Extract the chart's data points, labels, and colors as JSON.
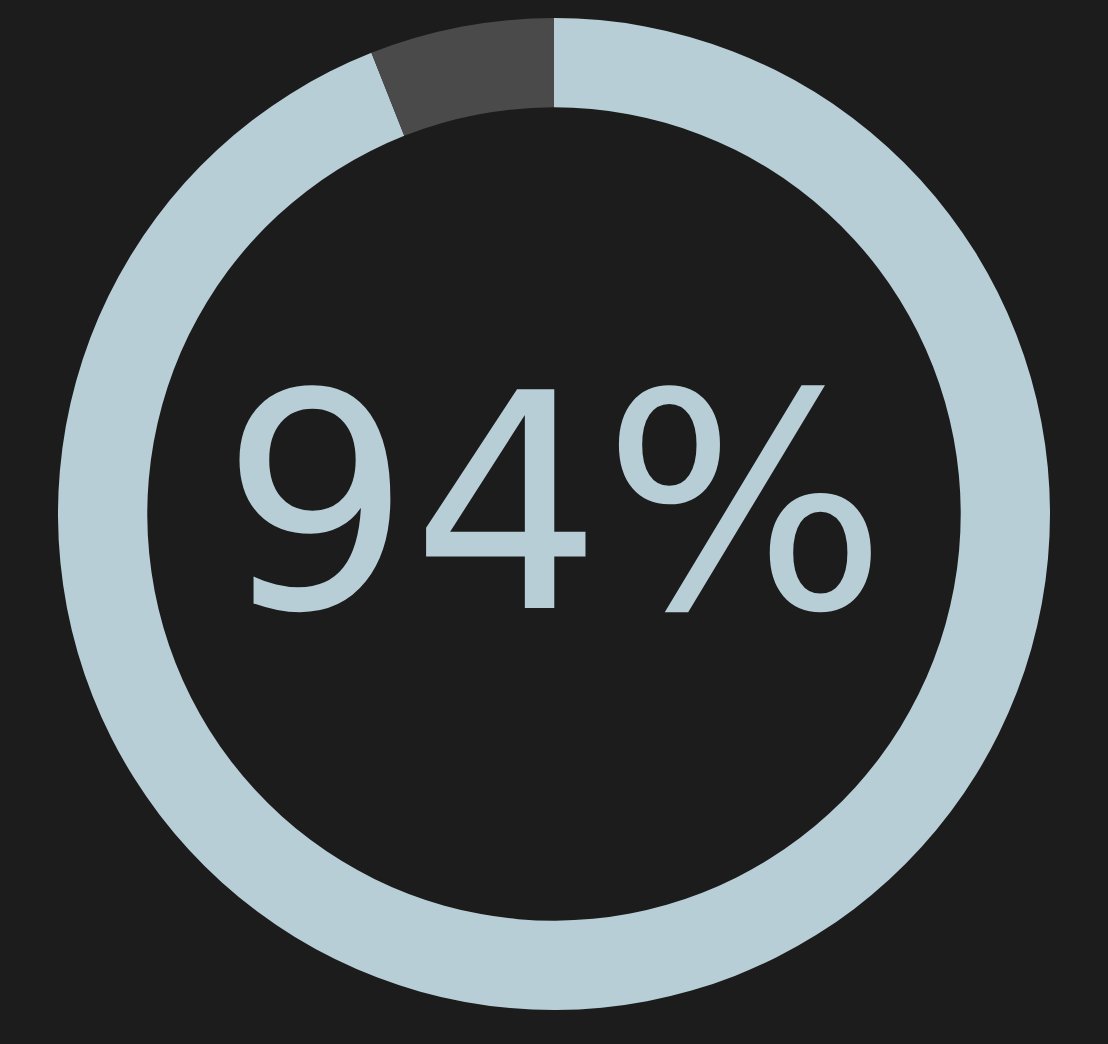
{
  "chart_data": {
    "type": "donut",
    "categories": [
      null,
      null
    ],
    "values": [
      94,
      6
    ],
    "colors": [
      "#b8ced6",
      "#4a4a4a"
    ],
    "annotations": [
      "94%"
    ]
  }
}
